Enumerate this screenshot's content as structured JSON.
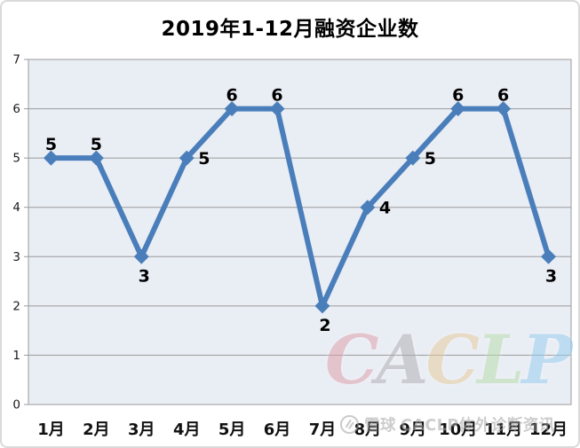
{
  "chart_data": {
    "type": "line",
    "title": "2019年1-12月融资企业数",
    "categories": [
      "1月",
      "2月",
      "3月",
      "4月",
      "5月",
      "6月",
      "7月",
      "8月",
      "9月",
      "10月",
      "11月",
      "12月"
    ],
    "values": [
      5,
      5,
      3,
      5,
      6,
      6,
      2,
      4,
      5,
      6,
      6,
      3
    ],
    "label_positions": [
      "above",
      "above",
      "below",
      "right",
      "above",
      "above",
      "below",
      "right",
      "right",
      "above",
      "above",
      "below"
    ],
    "xlabel": "",
    "ylabel": "",
    "ylim": [
      0,
      7
    ],
    "yticks": [
      0,
      1,
      2,
      3,
      4,
      5,
      6,
      7
    ],
    "grid": true,
    "legend_position": "none",
    "line_color": "#4a7ebb",
    "marker": "diamond",
    "plot_bg": "#e9edf4",
    "grid_color": "#9b9b9b",
    "axis_text_color": "#1a1a1a",
    "x_text_color": "#111111",
    "data_label_color": "#000000"
  },
  "watermarks": {
    "caclp": {
      "letters": [
        {
          "char": "C",
          "color": "#de9fab"
        },
        {
          "char": "A",
          "color": "#aeaeb2"
        },
        {
          "char": "C",
          "color": "#e8cb9c"
        },
        {
          "char": "L",
          "color": "#b7dcaa"
        },
        {
          "char": "P",
          "color": "#95cdf0"
        }
      ]
    },
    "bottom": {
      "logo": "xueqiu-logo",
      "text_left": "雪球",
      "text_right": "CACLP体外诊断资讯",
      "color": "#a3a3a3"
    }
  }
}
